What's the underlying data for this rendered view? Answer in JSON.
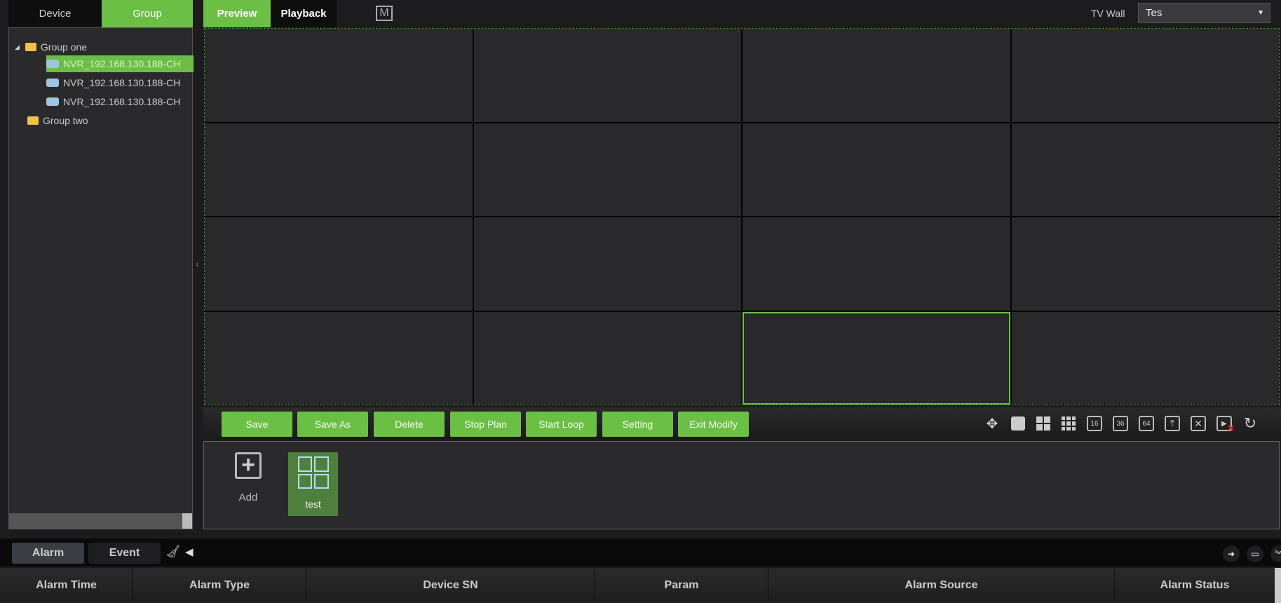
{
  "left_tabs": [
    {
      "label": "Device",
      "active": false
    },
    {
      "label": "Group",
      "active": true
    }
  ],
  "tree": {
    "groups": [
      {
        "label": "Group one",
        "expanded": true,
        "children": [
          "NVR_192.168.130.188-CH",
          "NVR_192.168.130.188-CH",
          "NVR_192.168.130.188-CH"
        ]
      },
      {
        "label": "Group two"
      }
    ]
  },
  "main_tabs": [
    {
      "label": "Preview",
      "active": true
    },
    {
      "label": "Playback",
      "active": false
    }
  ],
  "m_icon": "M",
  "tvwall": {
    "label": "TV Wall",
    "value": "Tes"
  },
  "grid": {
    "rows": 4,
    "cols": 4,
    "selected": {
      "row": 4,
      "col": 3
    }
  },
  "toolbar": {
    "buttons": [
      "Save",
      "Save As",
      "Delete",
      "Stop Plan",
      "Start Loop",
      "Setting",
      "Exit Modify"
    ],
    "icons": [
      "ptz-move-icon",
      "layout-1-icon",
      "layout-4-icon",
      "layout-9-icon",
      "layout-16-icon",
      "layout-36-icon",
      "layout-64-icon",
      "fullscreen-icon",
      "close-all-icon",
      "stop-preview-icon",
      "refresh-icon"
    ],
    "icon_labels": {
      "l16": "16",
      "l36": "36",
      "l64": "64"
    }
  },
  "plans": {
    "add_label": "Add",
    "items": [
      {
        "label": "test",
        "selected": true
      }
    ]
  },
  "bottom": {
    "tabs": [
      {
        "label": "Alarm",
        "active": true
      },
      {
        "label": "Event",
        "active": false
      }
    ],
    "columns": [
      "Alarm Time",
      "Alarm Type",
      "Device SN",
      "Param",
      "Alarm Source",
      "Alarm Status"
    ]
  },
  "colors": {
    "accent": "#6cbf45",
    "background": "#1c1c1e"
  }
}
